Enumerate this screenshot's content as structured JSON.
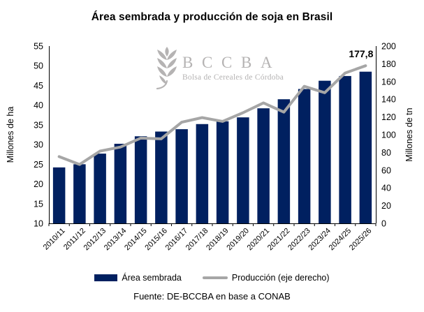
{
  "title": "Área sembrada y producción de soja en Brasil",
  "watermark": {
    "icon": "wheat-icon",
    "acronym": "BCCBA",
    "subtitle": "Bolsa de Cereales de Córdoba",
    "color": "#b5b3b3"
  },
  "legend": [
    {
      "label": "Área sembrada",
      "type": "bar",
      "color": "#002060"
    },
    {
      "label": "Producción (eje derecho)",
      "type": "line",
      "color": "#a6a6a6"
    }
  ],
  "source": "Fuente: DE-BCCBA en base a CONAB",
  "chart_data": {
    "type": "bar",
    "subtype": "bar+line dual axis",
    "categories": [
      "2010/11",
      "2011/12",
      "2012/13",
      "2013/14",
      "2014/15",
      "2015/16",
      "2016/17",
      "2017/18",
      "2018/19",
      "2019/20",
      "2020/21",
      "2021/22",
      "2022/23",
      "2023/24",
      "2024/25",
      "2025/26"
    ],
    "series": [
      {
        "name": "Área sembrada",
        "type": "bar",
        "axis": "left",
        "color": "#002060",
        "values": [
          24.2,
          25.0,
          27.7,
          30.2,
          32.1,
          33.3,
          33.9,
          35.2,
          35.9,
          36.9,
          39.2,
          41.5,
          44.1,
          46.2,
          47.4,
          48.5
        ]
      },
      {
        "name": "Producción (eje derecho)",
        "type": "line",
        "axis": "right",
        "color": "#a6a6a6",
        "values": [
          75.3,
          66.4,
          81.5,
          86.1,
          96.2,
          95.4,
          114.1,
          119.3,
          115.0,
          124.8,
          135.9,
          125.5,
          154.6,
          147.4,
          169.6,
          177.8
        ]
      }
    ],
    "left_axis": {
      "label": "Millones de ha",
      "min": 10,
      "max": 55,
      "step": 5
    },
    "right_axis": {
      "label": "Millones de tn",
      "min": 0,
      "max": 200,
      "step": 20
    },
    "annotation": {
      "text": "177,8",
      "series": "Producción (eje derecho)",
      "index": 15
    },
    "grid": false,
    "legend_position": "bottom"
  }
}
